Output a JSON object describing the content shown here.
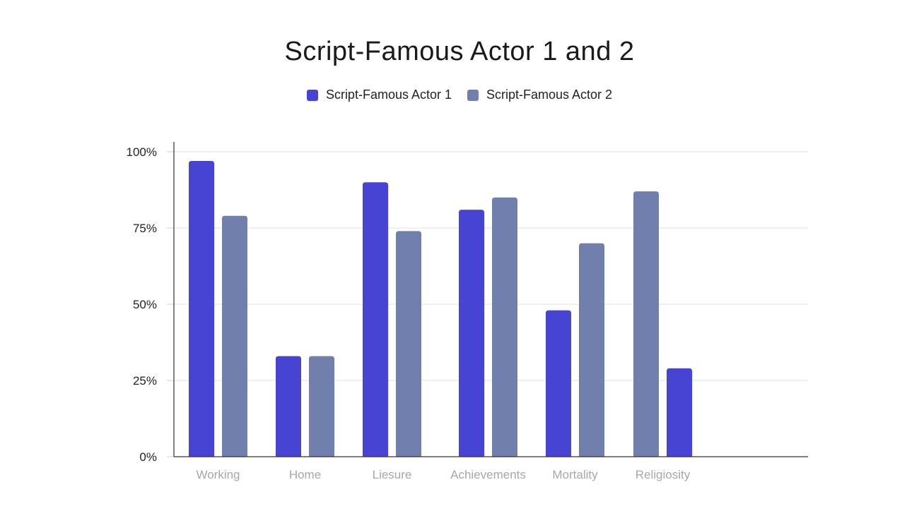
{
  "chart_data": {
    "type": "bar",
    "title": "Script-Famous Actor 1 and 2",
    "xlabel": "",
    "ylabel": "",
    "categories": [
      "Working",
      "Home",
      "Liesure",
      "Achievements",
      "Mortality",
      "Religiosity"
    ],
    "series": [
      {
        "name": "Script-Famous Actor 1",
        "color": "#4743d3",
        "values": [
          97,
          33,
          90,
          81,
          48,
          29
        ]
      },
      {
        "name": "Script-Famous Actor 2",
        "color": "#717fad",
        "values": [
          79,
          33,
          74,
          85,
          70,
          87
        ]
      }
    ],
    "bar_order": [
      [
        "s0",
        "s1"
      ],
      [
        "s0",
        "s1"
      ],
      [
        "s0",
        "s1"
      ],
      [
        "s0",
        "s1"
      ],
      [
        "s0",
        "s1"
      ],
      [
        "s1",
        "s0"
      ]
    ],
    "yticks": [
      "0%",
      "25%",
      "50%",
      "75%",
      "100%"
    ],
    "ytick_values": [
      0,
      25,
      50,
      75,
      100
    ],
    "ylim": [
      0,
      100
    ],
    "grid": true,
    "legend_position": "top-center"
  }
}
